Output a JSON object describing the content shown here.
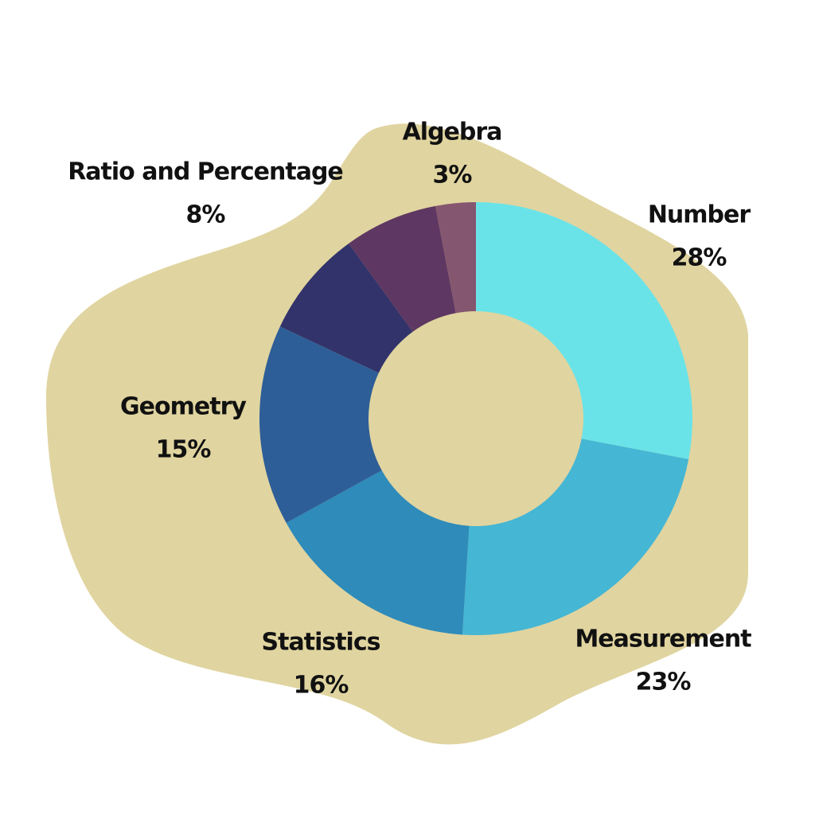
{
  "chart_data": {
    "type": "donut",
    "categories": [
      "Number",
      "Measurement",
      "Statistics",
      "Geometry",
      "Ratio and Percentage",
      null,
      "Algebra"
    ],
    "values": [
      28,
      23,
      16,
      15,
      8,
      7,
      3
    ],
    "value_labels": [
      "28%",
      "23%",
      "16%",
      "15%",
      "8%",
      null,
      "3%"
    ],
    "colors": [
      "#6ae3e8",
      "#45b6d4",
      "#2e8bba",
      "#2e5e97",
      "#32336b",
      "#5e3762",
      "#85566f"
    ]
  }
}
